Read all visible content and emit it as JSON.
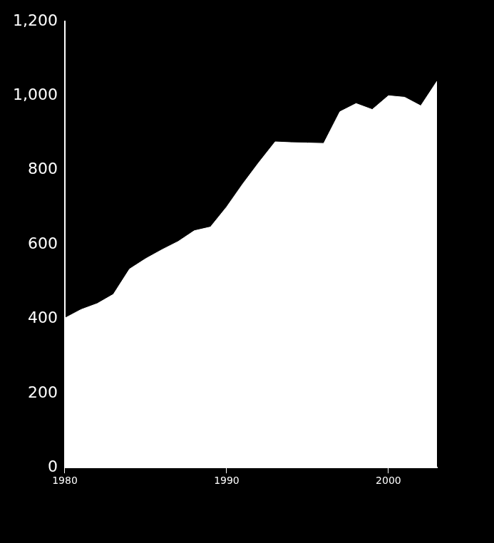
{
  "chart_data": {
    "type": "area",
    "x": [
      1980,
      1981,
      1982,
      1983,
      1984,
      1985,
      1986,
      1987,
      1988,
      1989,
      1990,
      1991,
      1992,
      1993,
      1994,
      1995,
      1996,
      1997,
      1998,
      1999,
      2000,
      2001,
      2002,
      2003
    ],
    "values": [
      402,
      425,
      441,
      466,
      534,
      562,
      586,
      608,
      637,
      647,
      701,
      763,
      821,
      876,
      874,
      873,
      872,
      957,
      979,
      963,
      1000,
      996,
      973,
      1039
    ],
    "color": "#ffffff",
    "xlim": [
      1980,
      2003
    ],
    "xticks": [
      1980,
      1990,
      2000
    ],
    "ylim": [
      0,
      1200
    ],
    "yticks": [
      0,
      200,
      400,
      600,
      800,
      {
        "value": 1000,
        "label": "1,000"
      },
      {
        "value": 1200,
        "label": "1,200"
      }
    ],
    "grid": false
  }
}
